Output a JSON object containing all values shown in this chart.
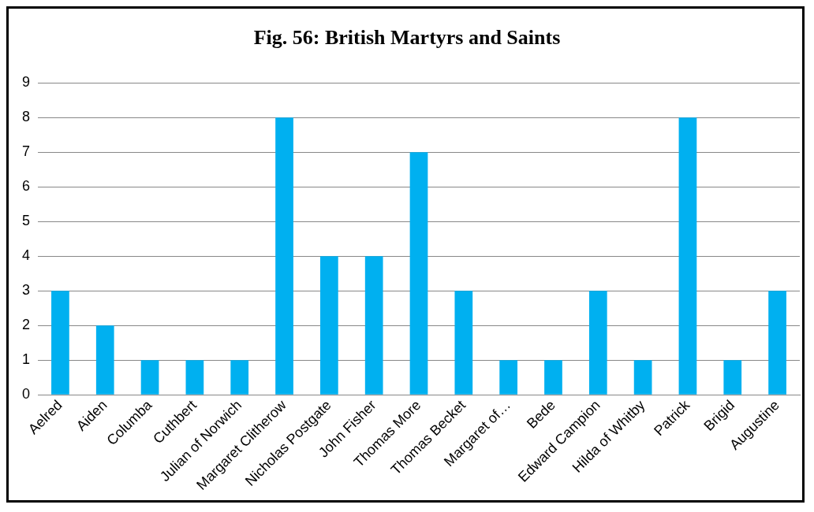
{
  "chart_data": {
    "type": "bar",
    "title": "Fig. 56: British Martyrs and Saints",
    "categories": [
      "Aelred",
      "Aiden",
      "Columba",
      "Cuthbert",
      "Julian of Norwich",
      "Margaret Clitherow",
      "Nicholas Postgate",
      "John Fisher",
      "Thomas More",
      "Thomas Becket",
      "Margaret of…",
      "Bede",
      "Edward Campion",
      "Hilda of Whitby",
      "Patrick",
      "Brigid",
      "Augustine"
    ],
    "values": [
      3,
      2,
      1,
      1,
      1,
      8,
      4,
      4,
      7,
      3,
      1,
      1,
      3,
      1,
      8,
      1,
      3
    ],
    "color": "#00b0f0",
    "ylim": [
      0,
      9
    ],
    "yticks": [
      0,
      1,
      2,
      3,
      4,
      5,
      6,
      7,
      8,
      9
    ],
    "grid": "y",
    "legend": false
  }
}
